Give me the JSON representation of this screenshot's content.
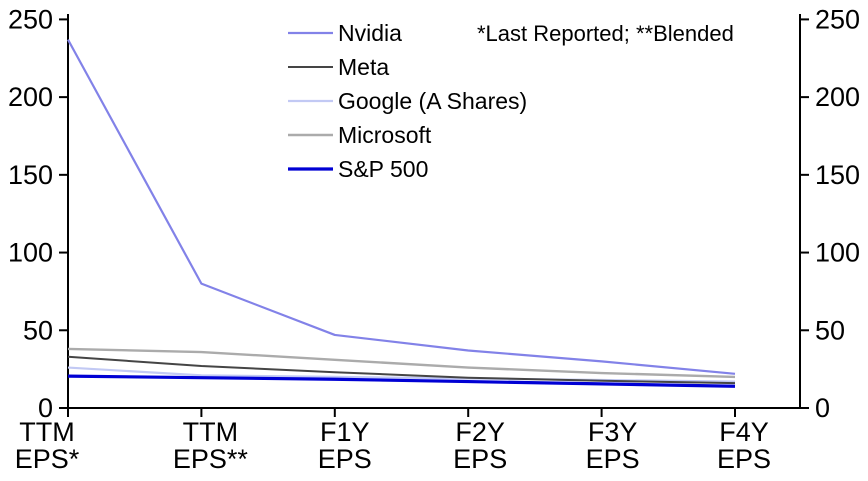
{
  "chart_data": {
    "type": "line",
    "title": "",
    "categories": [
      "TTM EPS*",
      "TTM EPS**",
      "F1Y EPS",
      "F2Y EPS",
      "F3Y EPS",
      "F4Y EPS"
    ],
    "category_labels_two_line": [
      [
        "TTM",
        "EPS*"
      ],
      [
        "TTM",
        "EPS**"
      ],
      [
        "F1Y",
        "EPS"
      ],
      [
        "F2Y",
        "EPS"
      ],
      [
        "F3Y",
        "EPS"
      ],
      [
        "F4Y",
        "EPS"
      ]
    ],
    "series": [
      {
        "name": "Nvidia",
        "color": "#8282E8",
        "width": 2.2,
        "values": [
          237,
          80,
          47,
          37,
          30,
          22
        ]
      },
      {
        "name": "Meta",
        "color": "#454545",
        "width": 2.0,
        "values": [
          33,
          27,
          23,
          19.5,
          17.5,
          16
        ]
      },
      {
        "name": "Google (A Shares)",
        "color": "#C2C9F4",
        "width": 2.2,
        "values": [
          26,
          21,
          20,
          19,
          18,
          17
        ]
      },
      {
        "name": "Microsoft",
        "color": "#ABABAB",
        "width": 2.4,
        "values": [
          38,
          36,
          31,
          26,
          22.5,
          20
        ]
      },
      {
        "name": "S&P 500",
        "color": "#0000D4",
        "width": 3.2,
        "values": [
          20.5,
          19.5,
          18.5,
          17,
          15.5,
          14
        ]
      }
    ],
    "y_axis": {
      "min": 0,
      "max": 250,
      "tick_step": 50,
      "ticks": [
        0,
        50,
        100,
        150,
        200,
        250
      ],
      "sides": [
        "left",
        "right"
      ],
      "grid": false
    },
    "legend": {
      "position": "top-center",
      "entries": [
        "Nvidia",
        "Meta",
        "Google (A Shares)",
        "Microsoft",
        "S&P 500"
      ]
    },
    "annotation": "*Last Reported; **Blended",
    "background": "#FFFFFF",
    "axis_color": "#000000"
  }
}
